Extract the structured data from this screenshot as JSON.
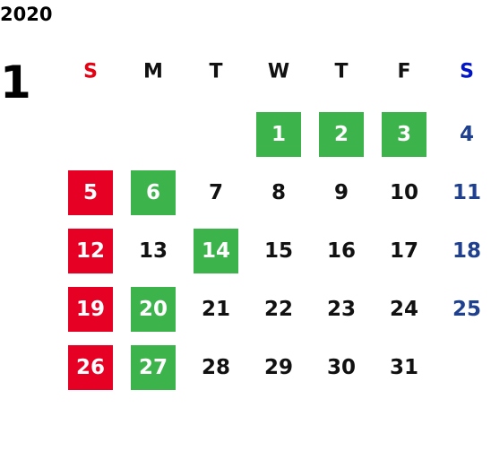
{
  "year": "2020",
  "month": "1",
  "weekdays": [
    {
      "label": "S",
      "color": "#e60012"
    },
    {
      "label": "M",
      "color": "#111111"
    },
    {
      "label": "T",
      "color": "#111111"
    },
    {
      "label": "W",
      "color": "#111111"
    },
    {
      "label": "T",
      "color": "#111111"
    },
    {
      "label": "F",
      "color": "#111111"
    },
    {
      "label": "S",
      "color": "#0014c8"
    }
  ],
  "styles": {
    "red": {
      "bg": "#e60023",
      "fg": "#ffffff"
    },
    "green": {
      "bg": "#3cb44b",
      "fg": "#ffffff"
    },
    "blue": {
      "bg": null,
      "fg": "#1f3f8f"
    },
    "plain": {
      "bg": null,
      "fg": "#111111"
    }
  },
  "weeks": [
    [
      null,
      null,
      null,
      {
        "day": 1,
        "style": "green"
      },
      {
        "day": 2,
        "style": "green"
      },
      {
        "day": 3,
        "style": "green"
      },
      {
        "day": 4,
        "style": "blue"
      }
    ],
    [
      {
        "day": 5,
        "style": "red"
      },
      {
        "day": 6,
        "style": "green"
      },
      {
        "day": 7,
        "style": "plain"
      },
      {
        "day": 8,
        "style": "plain"
      },
      {
        "day": 9,
        "style": "plain"
      },
      {
        "day": 10,
        "style": "plain"
      },
      {
        "day": 11,
        "style": "blue"
      }
    ],
    [
      {
        "day": 12,
        "style": "red"
      },
      {
        "day": 13,
        "style": "plain"
      },
      {
        "day": 14,
        "style": "green"
      },
      {
        "day": 15,
        "style": "plain"
      },
      {
        "day": 16,
        "style": "plain"
      },
      {
        "day": 17,
        "style": "plain"
      },
      {
        "day": 18,
        "style": "blue"
      }
    ],
    [
      {
        "day": 19,
        "style": "red"
      },
      {
        "day": 20,
        "style": "green"
      },
      {
        "day": 21,
        "style": "plain"
      },
      {
        "day": 22,
        "style": "plain"
      },
      {
        "day": 23,
        "style": "plain"
      },
      {
        "day": 24,
        "style": "plain"
      },
      {
        "day": 25,
        "style": "blue"
      }
    ],
    [
      {
        "day": 26,
        "style": "red"
      },
      {
        "day": 27,
        "style": "green"
      },
      {
        "day": 28,
        "style": "plain"
      },
      {
        "day": 29,
        "style": "plain"
      },
      {
        "day": 30,
        "style": "plain"
      },
      {
        "day": 31,
        "style": "plain"
      },
      null
    ]
  ]
}
